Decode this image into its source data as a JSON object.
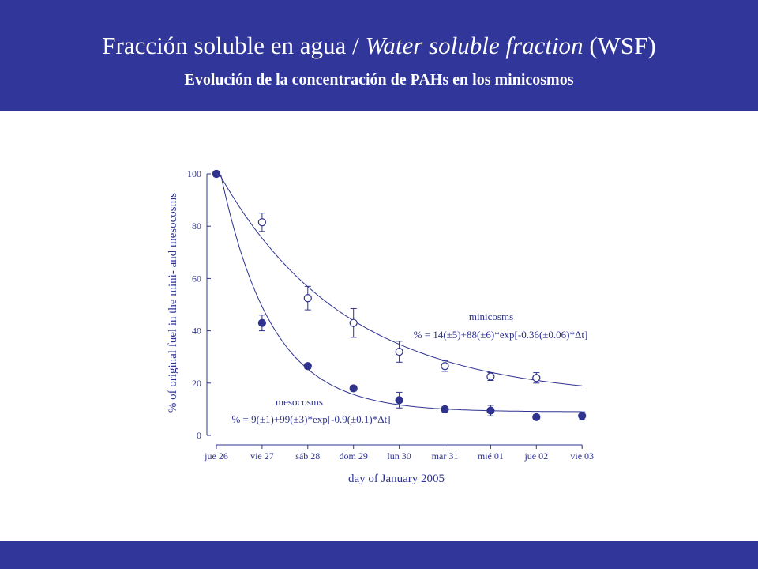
{
  "header": {
    "title_spanish": "Fracción soluble en agua / ",
    "title_english_italic": "Water soluble fraction",
    "title_suffix": " (WSF)",
    "subtitle": "Evolución de la concentración de PAHs en los minicosmos"
  },
  "colors": {
    "band": "#31369a",
    "chart_ink": "#2f338f",
    "background": "#ffffff"
  },
  "chart_data": {
    "type": "scatter",
    "xlabel": "day of January 2005",
    "ylabel": "% of original fuel in the mini- and mesocosms",
    "categories": [
      "jue 26",
      "vie 27",
      "sáb 28",
      "dom 29",
      "lun 30",
      "mar 31",
      "mié 01",
      "jue 02",
      "vie 03"
    ],
    "ylim": [
      0,
      100
    ],
    "yticks": [
      0,
      20,
      40,
      60,
      80,
      100
    ],
    "series": [
      {
        "name": "minicosms",
        "marker": "open-circle",
        "x": [
          0,
          1,
          2,
          3,
          4,
          5,
          6,
          7
        ],
        "y": [
          100,
          81.5,
          52.5,
          43,
          32,
          26.5,
          22.5,
          22
        ],
        "err": [
          0,
          3.5,
          4.5,
          5.5,
          4,
          2,
          1.5,
          2
        ],
        "equation": "% = 14(±5)+88(±6)*exp[-0.36(±0.06)*Δt]",
        "fit": {
          "a": 14,
          "b": 88,
          "k": 0.36
        }
      },
      {
        "name": "mesocosms",
        "marker": "filled-circle",
        "x": [
          0,
          1,
          2,
          3,
          4,
          5,
          6,
          7,
          8
        ],
        "y": [
          100,
          43,
          26.5,
          18,
          13.5,
          10,
          9.5,
          7,
          7.5
        ],
        "err": [
          0,
          3,
          1,
          1,
          3,
          1,
          2,
          1,
          1.5
        ],
        "equation": "% = 9(±1)+99(±3)*exp[-0.9(±0.1)*Δt]",
        "fit": {
          "a": 9,
          "b": 99,
          "k": 0.9
        }
      }
    ],
    "grid": false
  }
}
